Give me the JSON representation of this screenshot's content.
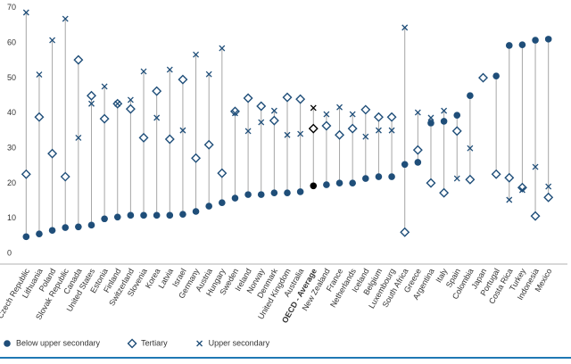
{
  "chart_data": {
    "type": "dotplot",
    "categories": [
      "Czech Republic",
      "Lithuania",
      "Poland",
      "Slovak Republic",
      "Canada",
      "United States",
      "Estonia",
      "Finland",
      "Switzerland",
      "Slovenia",
      "Korea",
      "Latvia",
      "Israel",
      "Germany",
      "Austria",
      "Hungary",
      "Sweden",
      "Ireland",
      "Norway",
      "Denmark",
      "United Kingdom",
      "Australia",
      "OECD - Average",
      "New Zealand",
      "France",
      "Netherlands",
      "Iceland",
      "Belgium",
      "Luxembourg",
      "South Africa",
      "Greece",
      "Argentina",
      "Italy",
      "Spain",
      "Colombia",
      "Japan",
      "Portugal",
      "Costa Rica",
      "Turkey",
      "Indonesia",
      "Mexico"
    ],
    "series": [
      {
        "name": "Below upper secondary",
        "color": "#1f4e79",
        "marker": "circle",
        "values": [
          4.8,
          5.6,
          6.6,
          7.4,
          7.6,
          8.1,
          9.9,
          10.4,
          10.9,
          10.9,
          10.9,
          10.9,
          11.2,
          12,
          13.5,
          14.5,
          15.8,
          16.8,
          16.8,
          17.3,
          17.3,
          17.6,
          19.3,
          19.6,
          20.1,
          20.1,
          21.4,
          21.9,
          21.9,
          25.4,
          26,
          37.2,
          37.7,
          39.4,
          45,
          null,
          50.6,
          59.3,
          59.5,
          60.8,
          61.1
        ]
      },
      {
        "name": "Tertiary",
        "color": "#1f4e79",
        "marker": "diamond",
        "values": [
          22.6,
          38.9,
          28.5,
          21.9,
          55.2,
          45,
          38.4,
          42.7,
          41.2,
          33,
          46.3,
          32.6,
          49.6,
          27.2,
          31,
          22.9,
          40.5,
          44.3,
          42,
          37.9,
          44.5,
          44,
          35.6,
          36.4,
          33.8,
          35.6,
          41,
          38.9,
          38.9,
          6.1,
          29.5,
          20.1,
          17.3,
          34.9,
          21.1,
          50.1,
          22.6,
          21.6,
          18.8,
          10.7,
          16
        ]
      },
      {
        "name": "Upper secondary",
        "color": "#1f4e79",
        "marker": "x",
        "values": [
          68.7,
          51,
          60.8,
          66.9,
          33,
          42.7,
          47.6,
          42.7,
          43.8,
          51.9,
          38.7,
          52.4,
          35.1,
          56.7,
          51.1,
          58.5,
          40,
          34.9,
          37.4,
          40.7,
          33.8,
          34.1,
          41.5,
          39.7,
          41.7,
          39.7,
          33.3,
          35.1,
          35.1,
          64.4,
          40.2,
          38.7,
          40.7,
          21.4,
          30,
          null,
          null,
          15.3,
          18.1,
          24.7,
          19.1
        ]
      }
    ],
    "highlight_index": 22,
    "highlight_color": "#000000",
    "stem_color": "#a6a6a6",
    "ylim": [
      -3,
      72
    ],
    "yticks": [
      0,
      10,
      20,
      30,
      40,
      50,
      60,
      70
    ],
    "grid": false
  }
}
